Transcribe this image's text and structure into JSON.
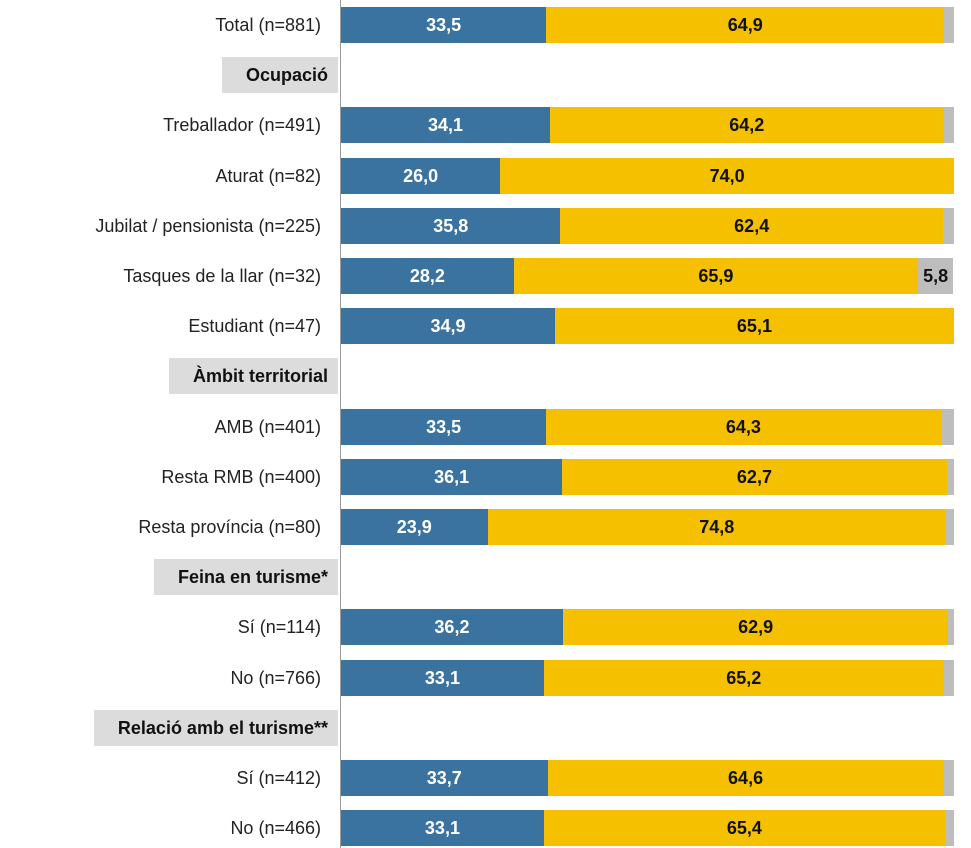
{
  "chart_data": {
    "type": "bar",
    "orientation": "horizontal-stacked",
    "colors": [
      "#3b73a0",
      "#f5c000",
      "#bdbdbd"
    ],
    "rows": [
      {
        "kind": "bar",
        "label": "Total (n=881)",
        "values": [
          33.5,
          64.9,
          1.6
        ],
        "value_labels": [
          "33,5",
          "64,9",
          ""
        ]
      },
      {
        "kind": "header",
        "label": "Ocupació"
      },
      {
        "kind": "bar",
        "label": "Treballador (n=491)",
        "values": [
          34.1,
          64.2,
          1.7
        ],
        "value_labels": [
          "34,1",
          "64,2",
          ""
        ]
      },
      {
        "kind": "bar",
        "label": "Aturat (n=82)",
        "values": [
          26.0,
          74.0,
          0
        ],
        "value_labels": [
          "26,0",
          "74,0",
          ""
        ]
      },
      {
        "kind": "bar",
        "label": "Jubilat / pensionista (n=225)",
        "values": [
          35.8,
          62.4,
          1.8
        ],
        "value_labels": [
          "35,8",
          "62,4",
          ""
        ]
      },
      {
        "kind": "bar",
        "label": "Tasques de la llar (n=32)",
        "values": [
          28.2,
          65.9,
          5.8
        ],
        "value_labels": [
          "28,2",
          "65,9",
          "5,8"
        ]
      },
      {
        "kind": "bar",
        "label": "Estudiant (n=47)",
        "values": [
          34.9,
          65.1,
          0
        ],
        "value_labels": [
          "34,9",
          "65,1",
          ""
        ]
      },
      {
        "kind": "header",
        "label": "Àmbit territorial"
      },
      {
        "kind": "bar",
        "label": "AMB (n=401)",
        "values": [
          33.5,
          64.3,
          2.2
        ],
        "value_labels": [
          "33,5",
          "64,3",
          ""
        ]
      },
      {
        "kind": "bar",
        "label": "Resta RMB (n=400)",
        "values": [
          36.1,
          62.7,
          1.2
        ],
        "value_labels": [
          "36,1",
          "62,7",
          ""
        ]
      },
      {
        "kind": "bar",
        "label": "Resta província (n=80)",
        "values": [
          23.9,
          74.8,
          1.3
        ],
        "value_labels": [
          "23,9",
          "74,8",
          ""
        ]
      },
      {
        "kind": "header",
        "label": "Feina en turisme*"
      },
      {
        "kind": "bar",
        "label": "Sí (n=114)",
        "values": [
          36.2,
          62.9,
          0.9
        ],
        "value_labels": [
          "36,2",
          "62,9",
          ""
        ]
      },
      {
        "kind": "bar",
        "label": "No (n=766)",
        "values": [
          33.1,
          65.2,
          1.7
        ],
        "value_labels": [
          "33,1",
          "65,2",
          ""
        ]
      },
      {
        "kind": "header",
        "label": "Relació amb el turisme**"
      },
      {
        "kind": "bar",
        "label": "Sí (n=412)",
        "values": [
          33.7,
          64.6,
          1.7
        ],
        "value_labels": [
          "33,7",
          "64,6",
          ""
        ]
      },
      {
        "kind": "bar",
        "label": "No (n=466)",
        "values": [
          33.1,
          65.4,
          1.5
        ],
        "value_labels": [
          "33,1",
          "65,4",
          ""
        ]
      }
    ],
    "xlim": [
      0,
      100
    ],
    "grid": false,
    "legend": "none"
  }
}
